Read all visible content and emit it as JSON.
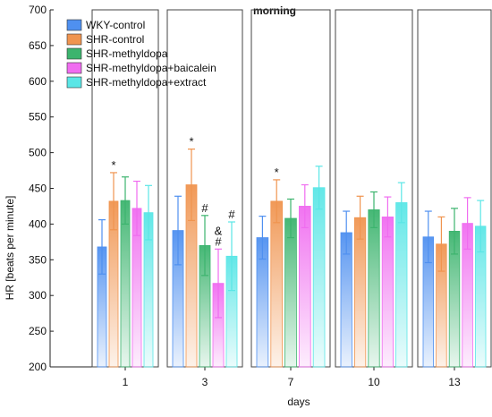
{
  "chart_data": {
    "type": "bar",
    "title": "morning",
    "xlabel": "days",
    "ylabel": "HR [beats per minute]",
    "ylim": [
      200,
      700
    ],
    "yticks": [
      "200",
      "250",
      "300",
      "350",
      "400",
      "450",
      "500",
      "550",
      "600",
      "650",
      "700"
    ],
    "categories": [
      "1",
      "3",
      "7",
      "10",
      "13"
    ],
    "grid": false,
    "legend_position": "top-left",
    "error_bars": true,
    "series": [
      {
        "name": "WKY-control",
        "color": "#4f90f0",
        "values": [
          368,
          391,
          381,
          388,
          382
        ],
        "errors": [
          38,
          48,
          30,
          30,
          36
        ],
        "annotations": [
          "",
          "",
          "",
          "",
          ""
        ]
      },
      {
        "name": "SHR-control",
        "color": "#f0944f",
        "values": [
          432,
          455,
          432,
          409,
          372
        ],
        "errors": [
          40,
          50,
          30,
          30,
          38
        ],
        "annotations": [
          "*",
          "*",
          "*",
          "",
          ""
        ]
      },
      {
        "name": "SHR-methyldopa",
        "color": "#3cb46e",
        "values": [
          433,
          370,
          408,
          420,
          390
        ],
        "errors": [
          33,
          42,
          27,
          25,
          32
        ],
        "annotations": [
          "",
          "#",
          "",
          "",
          ""
        ]
      },
      {
        "name": "SHR-methyldopa+baicalein",
        "color": "#f06cf0",
        "values": [
          422,
          317,
          425,
          410,
          401
        ],
        "errors": [
          38,
          48,
          30,
          28,
          36
        ],
        "annotations": [
          "",
          "&\n#",
          "",
          "",
          ""
        ]
      },
      {
        "name": "SHR-methyldopa+extract",
        "color": "#5ae6e6",
        "values": [
          416,
          355,
          451,
          430,
          397
        ],
        "errors": [
          38,
          48,
          30,
          28,
          36
        ],
        "annotations": [
          "",
          "#",
          "",
          "",
          ""
        ]
      }
    ]
  }
}
